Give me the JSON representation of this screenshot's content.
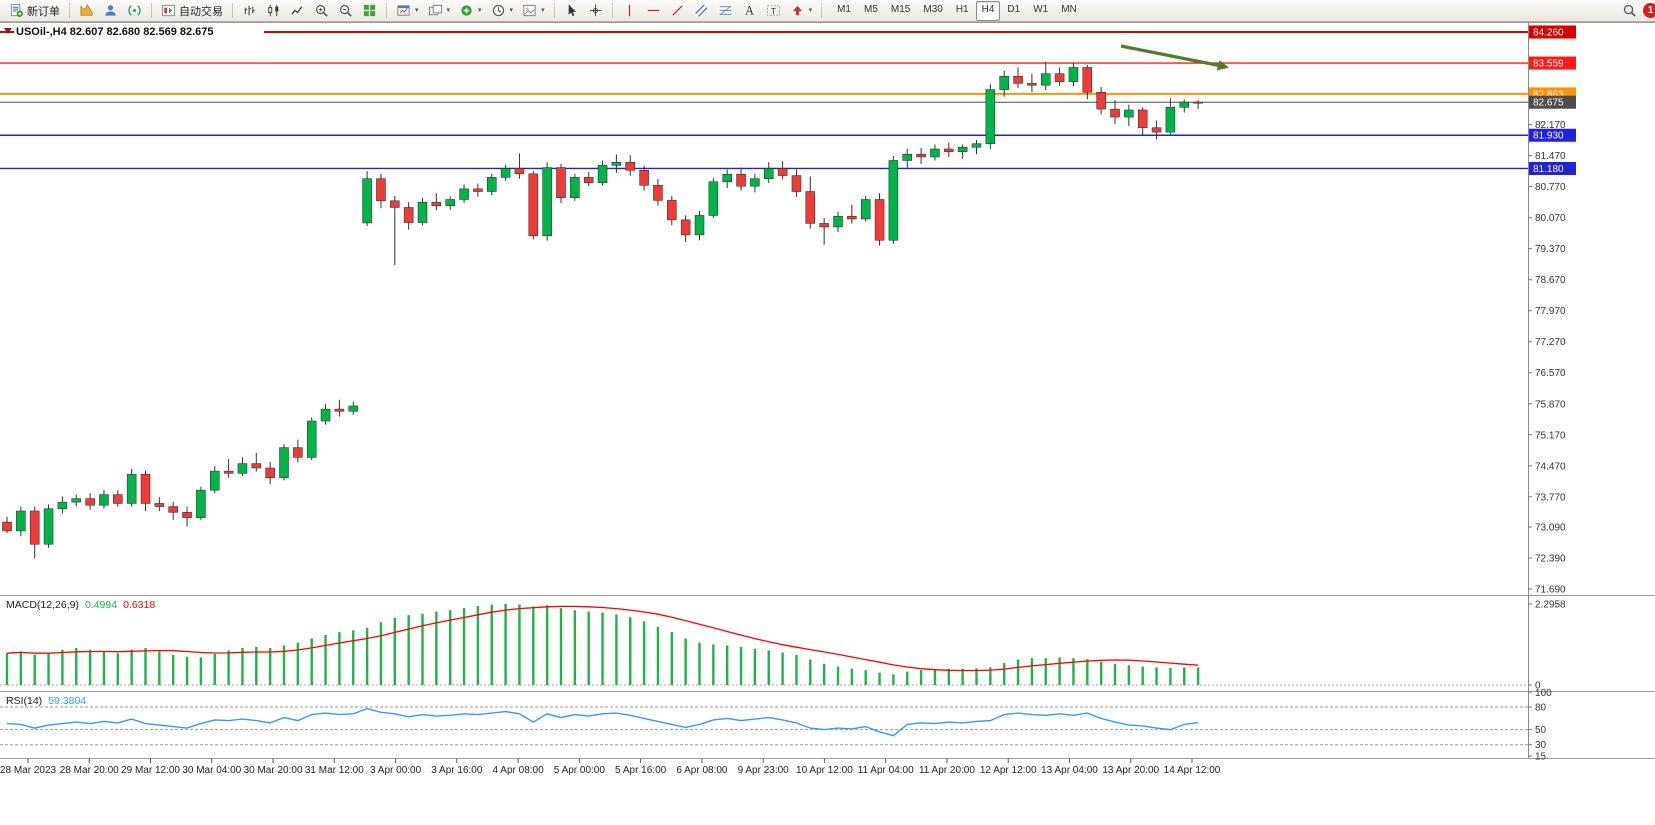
{
  "toolbar": {
    "new_order_label": "新订单",
    "autotrading_label": "自动交易",
    "timeframes": [
      "M1",
      "M5",
      "M15",
      "M30",
      "H1",
      "H4",
      "D1",
      "W1",
      "MN"
    ],
    "active_timeframe": "H4",
    "notification_count": "1"
  },
  "chart_data": {
    "type": "candlestick",
    "symbol_period": "USOil-,H4",
    "ohlc_display": "82.607 82.680 82.569 82.675",
    "colors": {
      "up": "#00B44A",
      "down": "#ED3B3B",
      "wick": "#333333"
    },
    "arrow_color": "#4e7d2b",
    "price_lines": [
      {
        "price": 84.26,
        "label": "84.260",
        "color": "#d90000",
        "width": 2,
        "type": "resistance-upper"
      },
      {
        "price": 83.559,
        "label": "83.559",
        "color": "#ff1a1a",
        "width": 1.4,
        "type": "resistance"
      },
      {
        "price": 82.863,
        "label": "82.863",
        "color": "#ff9300",
        "width": 2,
        "type": "level-orange"
      },
      {
        "price": 82.675,
        "label": "82.675",
        "color": "#4d4d4d",
        "width": 1,
        "type": "current-price"
      },
      {
        "price": 81.93,
        "label": "81.930",
        "color": "#2121de",
        "width": 1.4,
        "type": "support-upper"
      },
      {
        "price": 81.18,
        "label": "81.180",
        "color": "#2121de",
        "width": 1.4,
        "type": "support-lower"
      }
    ],
    "y_axis_ticks": [
      "82.170",
      "81.470",
      "80.770",
      "80.070",
      "79.370",
      "78.670",
      "77.970",
      "77.270",
      "76.570",
      "75.870",
      "75.170",
      "74.470",
      "73.770",
      "73.090",
      "72.390",
      "71.690"
    ],
    "candles": [
      [
        73.2,
        73.32,
        72.95,
        73.0
      ],
      [
        73.0,
        73.55,
        72.88,
        73.45
      ],
      [
        73.45,
        73.55,
        72.38,
        72.7
      ],
      [
        72.7,
        73.6,
        72.62,
        73.5
      ],
      [
        73.5,
        73.78,
        73.4,
        73.65
      ],
      [
        73.65,
        73.82,
        73.55,
        73.73
      ],
      [
        73.73,
        73.85,
        73.48,
        73.58
      ],
      [
        73.58,
        73.92,
        73.5,
        73.82
      ],
      [
        73.82,
        73.92,
        73.55,
        73.62
      ],
      [
        73.62,
        74.4,
        73.55,
        74.28
      ],
      [
        74.28,
        74.36,
        73.45,
        73.62
      ],
      [
        73.62,
        73.76,
        73.45,
        73.55
      ],
      [
        73.55,
        73.66,
        73.25,
        73.42
      ],
      [
        73.42,
        73.55,
        73.1,
        73.3
      ],
      [
        73.3,
        74.0,
        73.24,
        73.92
      ],
      [
        73.92,
        74.46,
        73.85,
        74.35
      ],
      [
        74.35,
        74.62,
        74.2,
        74.3
      ],
      [
        74.3,
        74.66,
        74.24,
        74.52
      ],
      [
        74.52,
        74.76,
        74.34,
        74.42
      ],
      [
        74.42,
        74.56,
        74.05,
        74.2
      ],
      [
        74.2,
        74.96,
        74.14,
        74.88
      ],
      [
        74.88,
        75.06,
        74.55,
        74.66
      ],
      [
        74.66,
        75.56,
        74.6,
        75.48
      ],
      [
        75.48,
        75.86,
        75.4,
        75.75
      ],
      [
        75.75,
        75.96,
        75.58,
        75.7
      ],
      [
        75.7,
        75.92,
        75.62,
        75.82
      ],
      [
        79.95,
        81.12,
        79.88,
        80.95
      ],
      [
        80.95,
        81.06,
        80.28,
        80.45
      ],
      [
        80.45,
        80.56,
        79.0,
        80.3
      ],
      [
        80.3,
        80.42,
        79.8,
        79.96
      ],
      [
        79.96,
        80.52,
        79.9,
        80.42
      ],
      [
        80.42,
        80.62,
        80.24,
        80.34
      ],
      [
        80.34,
        80.55,
        80.25,
        80.48
      ],
      [
        80.48,
        80.82,
        80.4,
        80.72
      ],
      [
        80.72,
        80.84,
        80.54,
        80.66
      ],
      [
        80.66,
        81.06,
        80.58,
        80.98
      ],
      [
        80.98,
        81.26,
        80.9,
        81.18
      ],
      [
        81.18,
        81.52,
        80.95,
        81.06
      ],
      [
        81.06,
        81.12,
        79.58,
        79.66
      ],
      [
        79.66,
        81.32,
        79.55,
        81.2
      ],
      [
        81.2,
        81.28,
        80.4,
        80.52
      ],
      [
        80.52,
        81.06,
        80.45,
        80.98
      ],
      [
        80.98,
        81.1,
        80.78,
        80.86
      ],
      [
        80.86,
        81.36,
        80.8,
        81.25
      ],
      [
        81.25,
        81.5,
        81.08,
        81.32
      ],
      [
        81.32,
        81.48,
        81.02,
        81.14
      ],
      [
        81.14,
        81.24,
        80.68,
        80.8
      ],
      [
        80.8,
        80.94,
        80.34,
        80.46
      ],
      [
        80.46,
        80.56,
        79.9,
        80.02
      ],
      [
        80.02,
        80.12,
        79.52,
        79.68
      ],
      [
        79.68,
        80.22,
        79.56,
        80.12
      ],
      [
        80.12,
        80.96,
        80.06,
        80.88
      ],
      [
        80.88,
        81.16,
        80.74,
        81.05
      ],
      [
        81.05,
        81.2,
        80.68,
        80.78
      ],
      [
        80.78,
        81.06,
        80.64,
        80.95
      ],
      [
        80.95,
        81.32,
        80.85,
        81.18
      ],
      [
        81.18,
        81.34,
        80.94,
        81.02
      ],
      [
        81.02,
        81.16,
        80.54,
        80.66
      ],
      [
        80.66,
        81.0,
        79.82,
        79.94
      ],
      [
        79.94,
        80.06,
        79.46,
        79.86
      ],
      [
        79.86,
        80.2,
        79.74,
        80.1
      ],
      [
        80.1,
        80.36,
        79.94,
        80.04
      ],
      [
        80.04,
        80.56,
        79.98,
        80.48
      ],
      [
        80.48,
        80.62,
        79.44,
        79.56
      ],
      [
        79.56,
        81.46,
        79.48,
        81.36
      ],
      [
        81.36,
        81.62,
        81.18,
        81.5
      ],
      [
        81.5,
        81.64,
        81.28,
        81.44
      ],
      [
        81.44,
        81.72,
        81.36,
        81.62
      ],
      [
        81.62,
        81.76,
        81.44,
        81.56
      ],
      [
        81.56,
        81.72,
        81.4,
        81.66
      ],
      [
        81.66,
        81.82,
        81.5,
        81.74
      ],
      [
        81.74,
        83.08,
        81.62,
        82.96
      ],
      [
        82.96,
        83.38,
        82.8,
        83.26
      ],
      [
        83.26,
        83.46,
        83.0,
        83.1
      ],
      [
        83.1,
        83.32,
        82.9,
        83.06
      ],
      [
        83.06,
        83.59,
        82.95,
        83.32
      ],
      [
        83.32,
        83.46,
        83.04,
        83.14
      ],
      [
        83.14,
        83.56,
        83.04,
        83.46
      ],
      [
        83.46,
        83.52,
        82.74,
        82.9
      ],
      [
        82.9,
        83.02,
        82.4,
        82.52
      ],
      [
        82.52,
        82.72,
        82.18,
        82.34
      ],
      [
        82.34,
        82.62,
        82.14,
        82.5
      ],
      [
        82.5,
        82.56,
        81.94,
        82.1
      ],
      [
        82.1,
        82.26,
        81.84,
        82.0
      ],
      [
        82.0,
        82.76,
        81.94,
        82.56
      ],
      [
        82.56,
        82.74,
        82.44,
        82.68
      ],
      [
        82.68,
        82.72,
        82.52,
        82.675
      ]
    ],
    "indicators": {
      "macd": {
        "label": "MACD(12,26,9)",
        "value_main": "0.4994",
        "value_signal": "0.6318",
        "color_hist": "#22b14c",
        "color_signal": "#ff0000",
        "y_axis": [
          "2.2958",
          "0"
        ],
        "histogram": [
          0.9,
          0.95,
          0.85,
          0.9,
          1.0,
          1.05,
          1.0,
          0.95,
          0.9,
          1.0,
          1.05,
          0.95,
          0.85,
          0.8,
          0.78,
          0.88,
          0.98,
          1.05,
          1.08,
          1.05,
          1.12,
          1.2,
          1.32,
          1.42,
          1.5,
          1.55,
          1.62,
          1.78,
          1.9,
          1.98,
          2.02,
          2.08,
          2.12,
          2.18,
          2.24,
          2.28,
          2.3,
          2.28,
          2.22,
          2.26,
          2.18,
          2.12,
          2.08,
          2.05,
          2.0,
          1.92,
          1.8,
          1.65,
          1.5,
          1.32,
          1.2,
          1.15,
          1.12,
          1.08,
          1.02,
          0.98,
          0.92,
          0.85,
          0.72,
          0.6,
          0.52,
          0.46,
          0.42,
          0.35,
          0.3,
          0.38,
          0.42,
          0.45,
          0.46,
          0.46,
          0.47,
          0.5,
          0.62,
          0.72,
          0.76,
          0.76,
          0.78,
          0.76,
          0.73,
          0.66,
          0.6,
          0.56,
          0.52,
          0.5,
          0.48,
          0.5,
          0.4994
        ]
      },
      "rsi": {
        "label": "RSI(14)",
        "value": "59.3804",
        "color": "#3399ff",
        "levels": [
          80,
          50,
          30
        ],
        "y_axis": [
          "100",
          "80",
          "50",
          "30",
          "15"
        ],
        "series": [
          58,
          57,
          52,
          56,
          58,
          60,
          58,
          61,
          59,
          64,
          58,
          56,
          54,
          52,
          58,
          63,
          62,
          64,
          62,
          59,
          66,
          62,
          70,
          72,
          70,
          71,
          78,
          73,
          71,
          67,
          70,
          68,
          69,
          71,
          70,
          72,
          74,
          71,
          60,
          71,
          66,
          70,
          68,
          71,
          72,
          69,
          65,
          61,
          57,
          53,
          57,
          63,
          65,
          62,
          64,
          66,
          63,
          59,
          52,
          50,
          52,
          51,
          54,
          47,
          42,
          57,
          59,
          58,
          60,
          59,
          61,
          62,
          70,
          72,
          70,
          69,
          71,
          69,
          72,
          65,
          60,
          56,
          55,
          52,
          50,
          57,
          59.38
        ]
      }
    },
    "x_axis_labels": [
      "28 Mar 2023",
      "28 Mar 20:00",
      "29 Mar 12:00",
      "30 Mar 04:00",
      "30 Mar 20:00",
      "31 Mar 12:00",
      "3 Apr 00:00",
      "3 Apr 16:00",
      "4 Apr 08:00",
      "5 Apr 00:00",
      "5 Apr 16:00",
      "6 Apr 08:00",
      "9 Apr 23:00",
      "10 Apr 12:00",
      "11 Apr 04:00",
      "11 Apr 20:00",
      "12 Apr 12:00",
      "13 Apr 04:00",
      "13 Apr 20:00",
      "14 Apr 12:00"
    ]
  }
}
